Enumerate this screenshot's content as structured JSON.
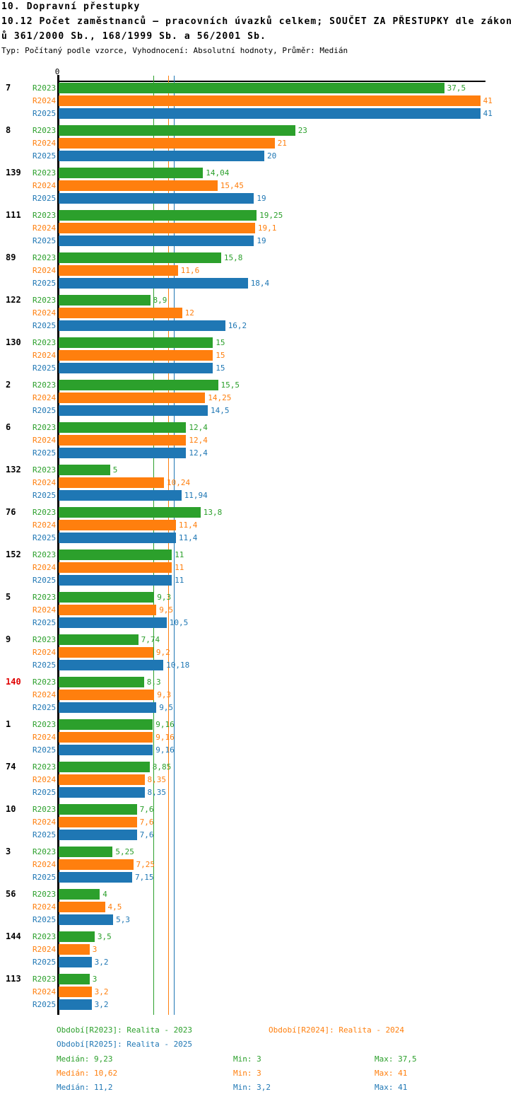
{
  "header": {
    "title": "10. Dopravní přestupky",
    "subtitle_line1": "10.12 Počet zaměstnanců – pracovních úvazků celkem; SOUČET ZA PŘESTUPKY dle zákon",
    "subtitle_line2": "ů 361/2000 Sb., 168/1999 Sb. a 56/2001 Sb.",
    "meta": "Typ: Počítaný podle vzorce, Vyhodnocení: Absolutní hodnoty, Průměr: Medián"
  },
  "chart_data": {
    "type": "bar",
    "orientation": "horizontal",
    "title": "10.12 Počet zaměstnanců - pracovních úvazků celkem; SOUČET ZA PŘESTUPKY dle zákonů 361/2000 Sb., 168/1999 Sb. a 56/2001 Sb.",
    "xlabel": "",
    "ylabel": "",
    "xlim": [
      0,
      41.4
    ],
    "axis": {
      "zero_label": "0"
    },
    "grid": false,
    "legend_position": "bottom",
    "series_labels": [
      "R2023",
      "R2024",
      "R2025"
    ],
    "colors": {
      "series": [
        "#2ca02c",
        "#ff7f0e",
        "#1f77b4"
      ],
      "axis": "#000000",
      "highlight_category": "#e00000"
    },
    "medians": [
      {
        "series": "R2023",
        "value": 9.23
      },
      {
        "series": "R2024",
        "value": 10.62
      },
      {
        "series": "R2025",
        "value": 11.2
      }
    ],
    "groups": [
      {
        "category": "7",
        "highlight": false,
        "values": [
          37.5,
          41,
          41
        ],
        "labels": [
          "37,5",
          "41",
          "41"
        ]
      },
      {
        "category": "8",
        "highlight": false,
        "values": [
          23,
          21,
          20
        ],
        "labels": [
          "23",
          "21",
          "20"
        ]
      },
      {
        "category": "139",
        "highlight": false,
        "values": [
          14.04,
          15.45,
          19
        ],
        "labels": [
          "14,04",
          "15,45",
          "19"
        ]
      },
      {
        "category": "111",
        "highlight": false,
        "values": [
          19.25,
          19.1,
          19
        ],
        "labels": [
          "19,25",
          "19,1",
          "19"
        ]
      },
      {
        "category": "89",
        "highlight": false,
        "values": [
          15.8,
          11.6,
          18.4
        ],
        "labels": [
          "15,8",
          "11,6",
          "18,4"
        ]
      },
      {
        "category": "122",
        "highlight": false,
        "values": [
          8.9,
          12,
          16.2
        ],
        "labels": [
          "8,9",
          "12",
          "16,2"
        ]
      },
      {
        "category": "130",
        "highlight": false,
        "values": [
          15,
          15,
          15
        ],
        "labels": [
          "15",
          "15",
          "15"
        ]
      },
      {
        "category": "2",
        "highlight": false,
        "values": [
          15.5,
          14.25,
          14.5
        ],
        "labels": [
          "15,5",
          "14,25",
          "14,5"
        ]
      },
      {
        "category": "6",
        "highlight": false,
        "values": [
          12.4,
          12.4,
          12.4
        ],
        "labels": [
          "12,4",
          "12,4",
          "12,4"
        ]
      },
      {
        "category": "132",
        "highlight": false,
        "values": [
          5,
          10.24,
          11.94
        ],
        "labels": [
          "5",
          "10,24",
          "11,94"
        ]
      },
      {
        "category": "76",
        "highlight": false,
        "values": [
          13.8,
          11.4,
          11.4
        ],
        "labels": [
          "13,8",
          "11,4",
          "11,4"
        ]
      },
      {
        "category": "152",
        "highlight": false,
        "values": [
          11,
          11,
          11
        ],
        "labels": [
          "11",
          "11",
          "11"
        ]
      },
      {
        "category": "5",
        "highlight": false,
        "values": [
          9.3,
          9.5,
          10.5
        ],
        "labels": [
          "9,3",
          "9,5",
          "10,5"
        ]
      },
      {
        "category": "9",
        "highlight": false,
        "values": [
          7.74,
          9.2,
          10.18
        ],
        "labels": [
          "7,74",
          "9,2",
          "10,18"
        ]
      },
      {
        "category": "140",
        "highlight": true,
        "values": [
          8.3,
          9.3,
          9.5
        ],
        "labels": [
          "8,3",
          "9,3",
          "9,5"
        ]
      },
      {
        "category": "1",
        "highlight": false,
        "values": [
          9.16,
          9.16,
          9.16
        ],
        "labels": [
          "9,16",
          "9,16",
          "9,16"
        ]
      },
      {
        "category": "74",
        "highlight": false,
        "values": [
          8.85,
          8.35,
          8.35
        ],
        "labels": [
          "8,85",
          "8,35",
          "8,35"
        ]
      },
      {
        "category": "10",
        "highlight": false,
        "values": [
          7.6,
          7.6,
          7.6
        ],
        "labels": [
          "7,6",
          "7,6",
          "7,6"
        ]
      },
      {
        "category": "3",
        "highlight": false,
        "values": [
          5.25,
          7.25,
          7.15
        ],
        "labels": [
          "5,25",
          "7,25",
          "7,15"
        ]
      },
      {
        "category": "56",
        "highlight": false,
        "values": [
          4,
          4.5,
          5.3
        ],
        "labels": [
          "4",
          "4,5",
          "5,3"
        ]
      },
      {
        "category": "144",
        "highlight": false,
        "values": [
          3.5,
          3,
          3.2
        ],
        "labels": [
          "3,5",
          "3",
          "3,2"
        ]
      },
      {
        "category": "113",
        "highlight": false,
        "values": [
          3,
          3.2,
          3.2
        ],
        "labels": [
          "3",
          "3,2",
          "3,2"
        ]
      }
    ]
  },
  "footer": {
    "legend": [
      {
        "text": "Období[R2023]: Realita - 2023"
      },
      {
        "text": "Období[R2024]: Realita - 2024"
      },
      {
        "text": "Období[R2025]: Realita - 2025"
      }
    ],
    "stats": [
      {
        "median": "Medián: 9,23",
        "min": "Min: 3",
        "max": "Max: 37,5"
      },
      {
        "median": "Medián: 10,62",
        "min": "Min: 3",
        "max": "Max: 41"
      },
      {
        "median": "Medián: 11,2",
        "min": "Min: 3,2",
        "max": "Max: 41"
      }
    ]
  }
}
